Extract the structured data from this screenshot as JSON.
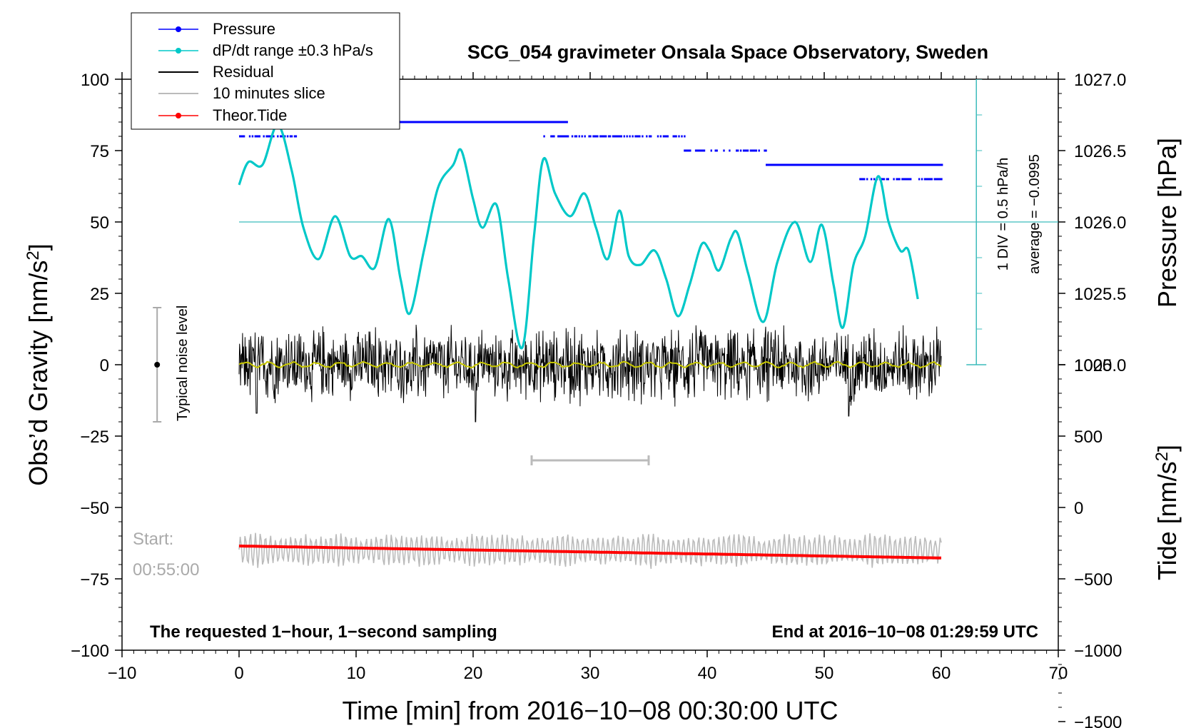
{
  "chart_data": {
    "type": "line",
    "title": "SCG_054 gravimeter Onsala Space Observatory, Sweden",
    "xlabel": "Time [min] from 2016−10−08 00:30:00 UTC",
    "ylabel": "Obs’d Gravity [nm/s",
    "ylabel_sup": "2",
    "ylabel_end": "]",
    "xlim": [
      -10,
      70
    ],
    "ylim": [
      -100,
      100
    ],
    "x_ticks": [
      -10,
      0,
      10,
      20,
      30,
      40,
      50,
      60,
      70
    ],
    "x_tick_labels": [
      "−10",
      "0",
      "10",
      "20",
      "30",
      "40",
      "50",
      "60",
      "70"
    ],
    "y_ticks": [
      -100,
      -75,
      -50,
      -25,
      0,
      25,
      50,
      75,
      100
    ],
    "y_tick_labels": [
      "−100",
      "−75",
      "−50",
      "−25",
      "0",
      "25",
      "50",
      "75",
      "100"
    ],
    "pressure_axis": {
      "label": "Pressure [hPa]",
      "ticks": [
        1025.0,
        1025.5,
        1026.0,
        1026.5,
        1027.0
      ],
      "tick_labels": [
        "1025.0",
        "1025.5",
        "1026.0",
        "1026.5",
        "1027.0"
      ],
      "scale_ref": {
        "value": 1026.0,
        "gravity": 50,
        "per_hpa": 50
      }
    },
    "tide_axis": {
      "label": "Tide [nm/s",
      "label_sup": "2",
      "label_end": "]",
      "ticks": [
        -1500,
        -1000,
        -500,
        0,
        500,
        1000
      ],
      "tick_labels": [
        "−1500",
        "−1000",
        "−500",
        "0",
        "500",
        "1000"
      ],
      "scale_ref": {
        "value": 0,
        "gravity": -50,
        "per_unit": 0.05
      }
    },
    "legend": [
      {
        "name": "Pressure",
        "color": "#0000ff",
        "marker": true
      },
      {
        "name": "dP/dt range ±0.3 hPa/s",
        "color": "#00c8c8",
        "marker": true
      },
      {
        "name": "Residual",
        "color": "#000000",
        "marker": false
      },
      {
        "name": "10 minutes slice",
        "color": "#bbbbbb",
        "marker": false
      },
      {
        "name": "Theor.Tide",
        "color": "#ff0000",
        "marker": true
      }
    ],
    "series": [
      {
        "name": "Pressure",
        "color": "#0000ff",
        "levels_hpa": [
          {
            "value": 1026.7,
            "x_range": [
              0,
              28
            ]
          },
          {
            "value": 1026.6,
            "x_range": [
              0,
              5
            ]
          },
          {
            "value": 1026.6,
            "x_range": [
              26,
              38
            ]
          },
          {
            "value": 1026.5,
            "x_range": [
              38,
              45
            ]
          },
          {
            "value": 1026.4,
            "x_range": [
              45,
              60
            ]
          },
          {
            "value": 1026.3,
            "x_range": [
              53,
              60
            ]
          }
        ]
      },
      {
        "name": "dP/dt range ±0.3 hPa/s",
        "color": "#00c8c8",
        "x": [
          0,
          0.8,
          2,
          3.3,
          4.5,
          5.5,
          6.8,
          8.2,
          9.5,
          10.5,
          11.6,
          12.8,
          13.8,
          14.6,
          15.8,
          17,
          18.3,
          19,
          20,
          20.8,
          22,
          23,
          24.2,
          25.2,
          26,
          27,
          28.3,
          29.5,
          30.5,
          31.5,
          32.5,
          33.3,
          34.3,
          35.5,
          36.5,
          37.5,
          38.5,
          39.5,
          40.2,
          41,
          42,
          42.6,
          43.5,
          44.8,
          46,
          47.5,
          48.8,
          49.8,
          50.8,
          51.6,
          52.5,
          53.5,
          54.6,
          55.5,
          56.5,
          57.2,
          58
        ],
        "values": [
          63,
          71,
          70,
          84,
          68,
          48,
          37,
          52,
          38,
          38,
          34,
          51,
          30,
          18,
          40,
          62,
          70,
          75,
          58,
          48,
          56,
          30,
          6,
          45,
          72,
          60,
          52,
          60,
          48,
          37,
          54,
          38,
          35,
          40,
          30,
          17,
          28,
          42,
          40,
          33,
          44,
          46,
          32,
          15,
          36,
          50,
          36,
          49,
          28,
          13,
          35,
          45,
          66,
          50,
          40,
          40,
          23
        ]
      },
      {
        "name": "Residual",
        "color": "#000000",
        "amplitude": 10,
        "x_range": [
          0,
          60
        ],
        "baseline": 0
      },
      {
        "name": "Smoothed residual",
        "color": "#c8c800",
        "baseline": 0
      },
      {
        "name": "Theor.Tide",
        "color": "#ff0000",
        "x": [
          0,
          60
        ],
        "values": [
          -63.5,
          -67.7
        ]
      },
      {
        "name": "10 minutes slice",
        "color": "#bbbbbb",
        "baseline": -65,
        "amplitude": 6,
        "x_range": [
          0,
          60
        ]
      }
    ],
    "slice_marker": {
      "x_range": [
        25,
        35
      ],
      "y": -33.5
    },
    "noise_level": {
      "x": -7,
      "center": 0,
      "range": [
        -20,
        20
      ],
      "label": "Typical noise level"
    },
    "start_label": "Start:",
    "start_time": "00:55:00",
    "right_annotation_1": "1 DIV = 0.5 hPa/h",
    "right_annotation_2": "average = −0.0995",
    "note_left": "The requested 1−hour, 1−second sampling",
    "note_right": "End at 2016−10−08 01:29:59 UTC",
    "dpdt_scale": {
      "x": 63,
      "top": 100,
      "bottom": 0,
      "reference": 50
    }
  }
}
